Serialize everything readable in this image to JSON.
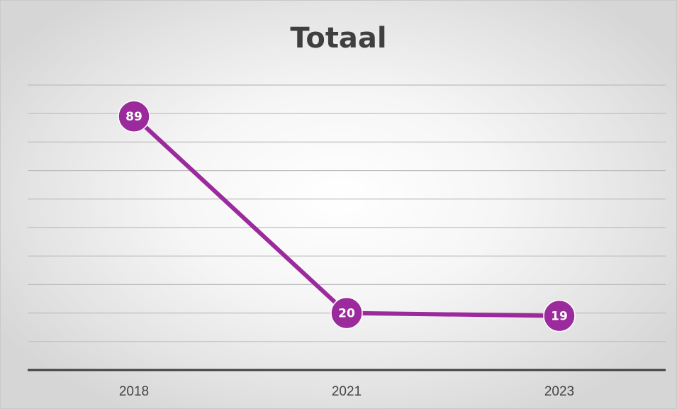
{
  "chart_data": {
    "type": "line",
    "title": "Totaal",
    "categories": [
      "2018",
      "2021",
      "2023"
    ],
    "series": [
      {
        "values": [
          89,
          20,
          19
        ]
      }
    ],
    "ylim": [
      0,
      100
    ],
    "grid": true,
    "y_tick_labels_shown": false,
    "legend": "none",
    "colors": {
      "line": "#9b2a9c",
      "marker": "#9b2a9c",
      "label_text": "#ffffff",
      "grid": "#bdbdbd",
      "axis": "#404040"
    }
  }
}
